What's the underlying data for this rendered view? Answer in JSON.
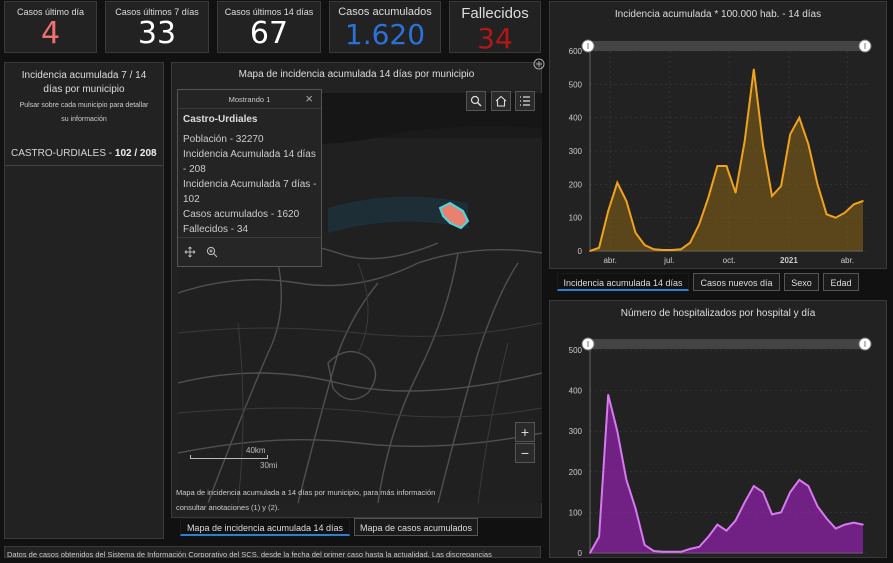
{
  "stats": [
    {
      "label": "Casos último día",
      "value": "4",
      "color": "#f07070"
    },
    {
      "label": "Casos últimos 7 días",
      "value": "33",
      "color": "#ffffff"
    },
    {
      "label": "Casos últimos 14 días",
      "value": "67",
      "color": "#ffffff"
    },
    {
      "label": "Casos acumulados",
      "value": "1.620",
      "color": "#2b72d8"
    },
    {
      "label": "Fallecidos",
      "value": "34",
      "color": "#b01818"
    }
  ],
  "left_panel": {
    "title": "Incidencia acumulada 7 / 14 días por municipio",
    "subtitle": "Pulsar sobre cada municipio para detallar su información",
    "item_name": "CASTRO-URDIALES - ",
    "item_value": "102 / 208"
  },
  "map_panel": {
    "title": "Mapa de incidencia acumulada 14 días por municipio",
    "popup": {
      "header": "Mostrando 1",
      "name": "Castro-Urdiales",
      "lines": [
        "Población - 32270",
        "Incidencia Acumulada 14 días - 208",
        "Incidencia Acumulada 7 días - 102",
        "Casos acumulados - 1620",
        "Fallecidos - 34"
      ]
    },
    "scale_km": "40km",
    "scale_mi": "30mi",
    "zoom_in": "+",
    "zoom_out": "−",
    "footnote": "Mapa de incidencia acumulada a 14 días por municipio, para más información consultar anotaciones (1) y (2).",
    "tabs": [
      "Mapa de incidencia acumulada 14 días",
      "Mapa de casos acumulados"
    ]
  },
  "chart_tabs": [
    "Incidencia acumulada 14 días",
    "Casos nuevos día",
    "Sexo",
    "Edad"
  ],
  "footer_text": "Datos de casos obtenidos del Sistema de Información Corporativo del SCS, desde la fecha del primer caso hasta la actualidad. Las discrepancias",
  "colors": {
    "incidence": "#f0a31c",
    "hospital": "#b21fd6",
    "hospital_light": "#d77af0",
    "active_tab": "#2f7fd0"
  },
  "chart_data": [
    {
      "type": "area",
      "title": "Incidencia acumulada * 100.000 hab. - 14 días",
      "ylim": [
        0,
        600
      ],
      "yticks": [
        0,
        100,
        200,
        300,
        400,
        500,
        600
      ],
      "xticks": [
        "abr.",
        "jul.",
        "oct.",
        "2021",
        "abr."
      ],
      "x": [
        "2020-03-01",
        "2020-03-15",
        "2020-03-29",
        "2020-04-12",
        "2020-04-26",
        "2020-05-10",
        "2020-05-24",
        "2020-06-07",
        "2020-06-21",
        "2020-07-05",
        "2020-07-19",
        "2020-08-02",
        "2020-08-16",
        "2020-08-30",
        "2020-09-13",
        "2020-09-27",
        "2020-10-11",
        "2020-10-25",
        "2020-11-08",
        "2020-11-22",
        "2020-12-06",
        "2020-12-20",
        "2021-01-03",
        "2021-01-17",
        "2021-01-31",
        "2021-02-14",
        "2021-02-28",
        "2021-03-14",
        "2021-03-28",
        "2021-04-11",
        "2021-04-25"
      ],
      "values": [
        0,
        10,
        120,
        205,
        150,
        55,
        18,
        5,
        3,
        3,
        5,
        25,
        80,
        160,
        255,
        255,
        175,
        330,
        545,
        320,
        165,
        195,
        350,
        400,
        320,
        200,
        110,
        100,
        115,
        140,
        150
      ]
    },
    {
      "type": "area",
      "title": "Número de hospitalizados por hospital y día",
      "ylim": [
        0,
        500
      ],
      "yticks": [
        0,
        100,
        200,
        300,
        400,
        500
      ],
      "x": [
        "2020-03-01",
        "2020-03-15",
        "2020-03-29",
        "2020-04-12",
        "2020-04-26",
        "2020-05-10",
        "2020-05-24",
        "2020-06-07",
        "2020-06-21",
        "2020-07-05",
        "2020-07-19",
        "2020-08-02",
        "2020-08-16",
        "2020-08-30",
        "2020-09-13",
        "2020-09-27",
        "2020-10-11",
        "2020-10-25",
        "2020-11-08",
        "2020-11-22",
        "2020-12-06",
        "2020-12-20",
        "2021-01-03",
        "2021-01-17",
        "2021-01-31",
        "2021-02-14",
        "2021-02-28",
        "2021-03-14",
        "2021-03-28",
        "2021-04-11",
        "2021-04-25"
      ],
      "values": [
        0,
        40,
        390,
        300,
        180,
        110,
        20,
        5,
        3,
        3,
        3,
        10,
        15,
        40,
        70,
        55,
        80,
        125,
        165,
        150,
        95,
        100,
        150,
        180,
        165,
        115,
        85,
        60,
        70,
        75,
        70
      ]
    }
  ]
}
